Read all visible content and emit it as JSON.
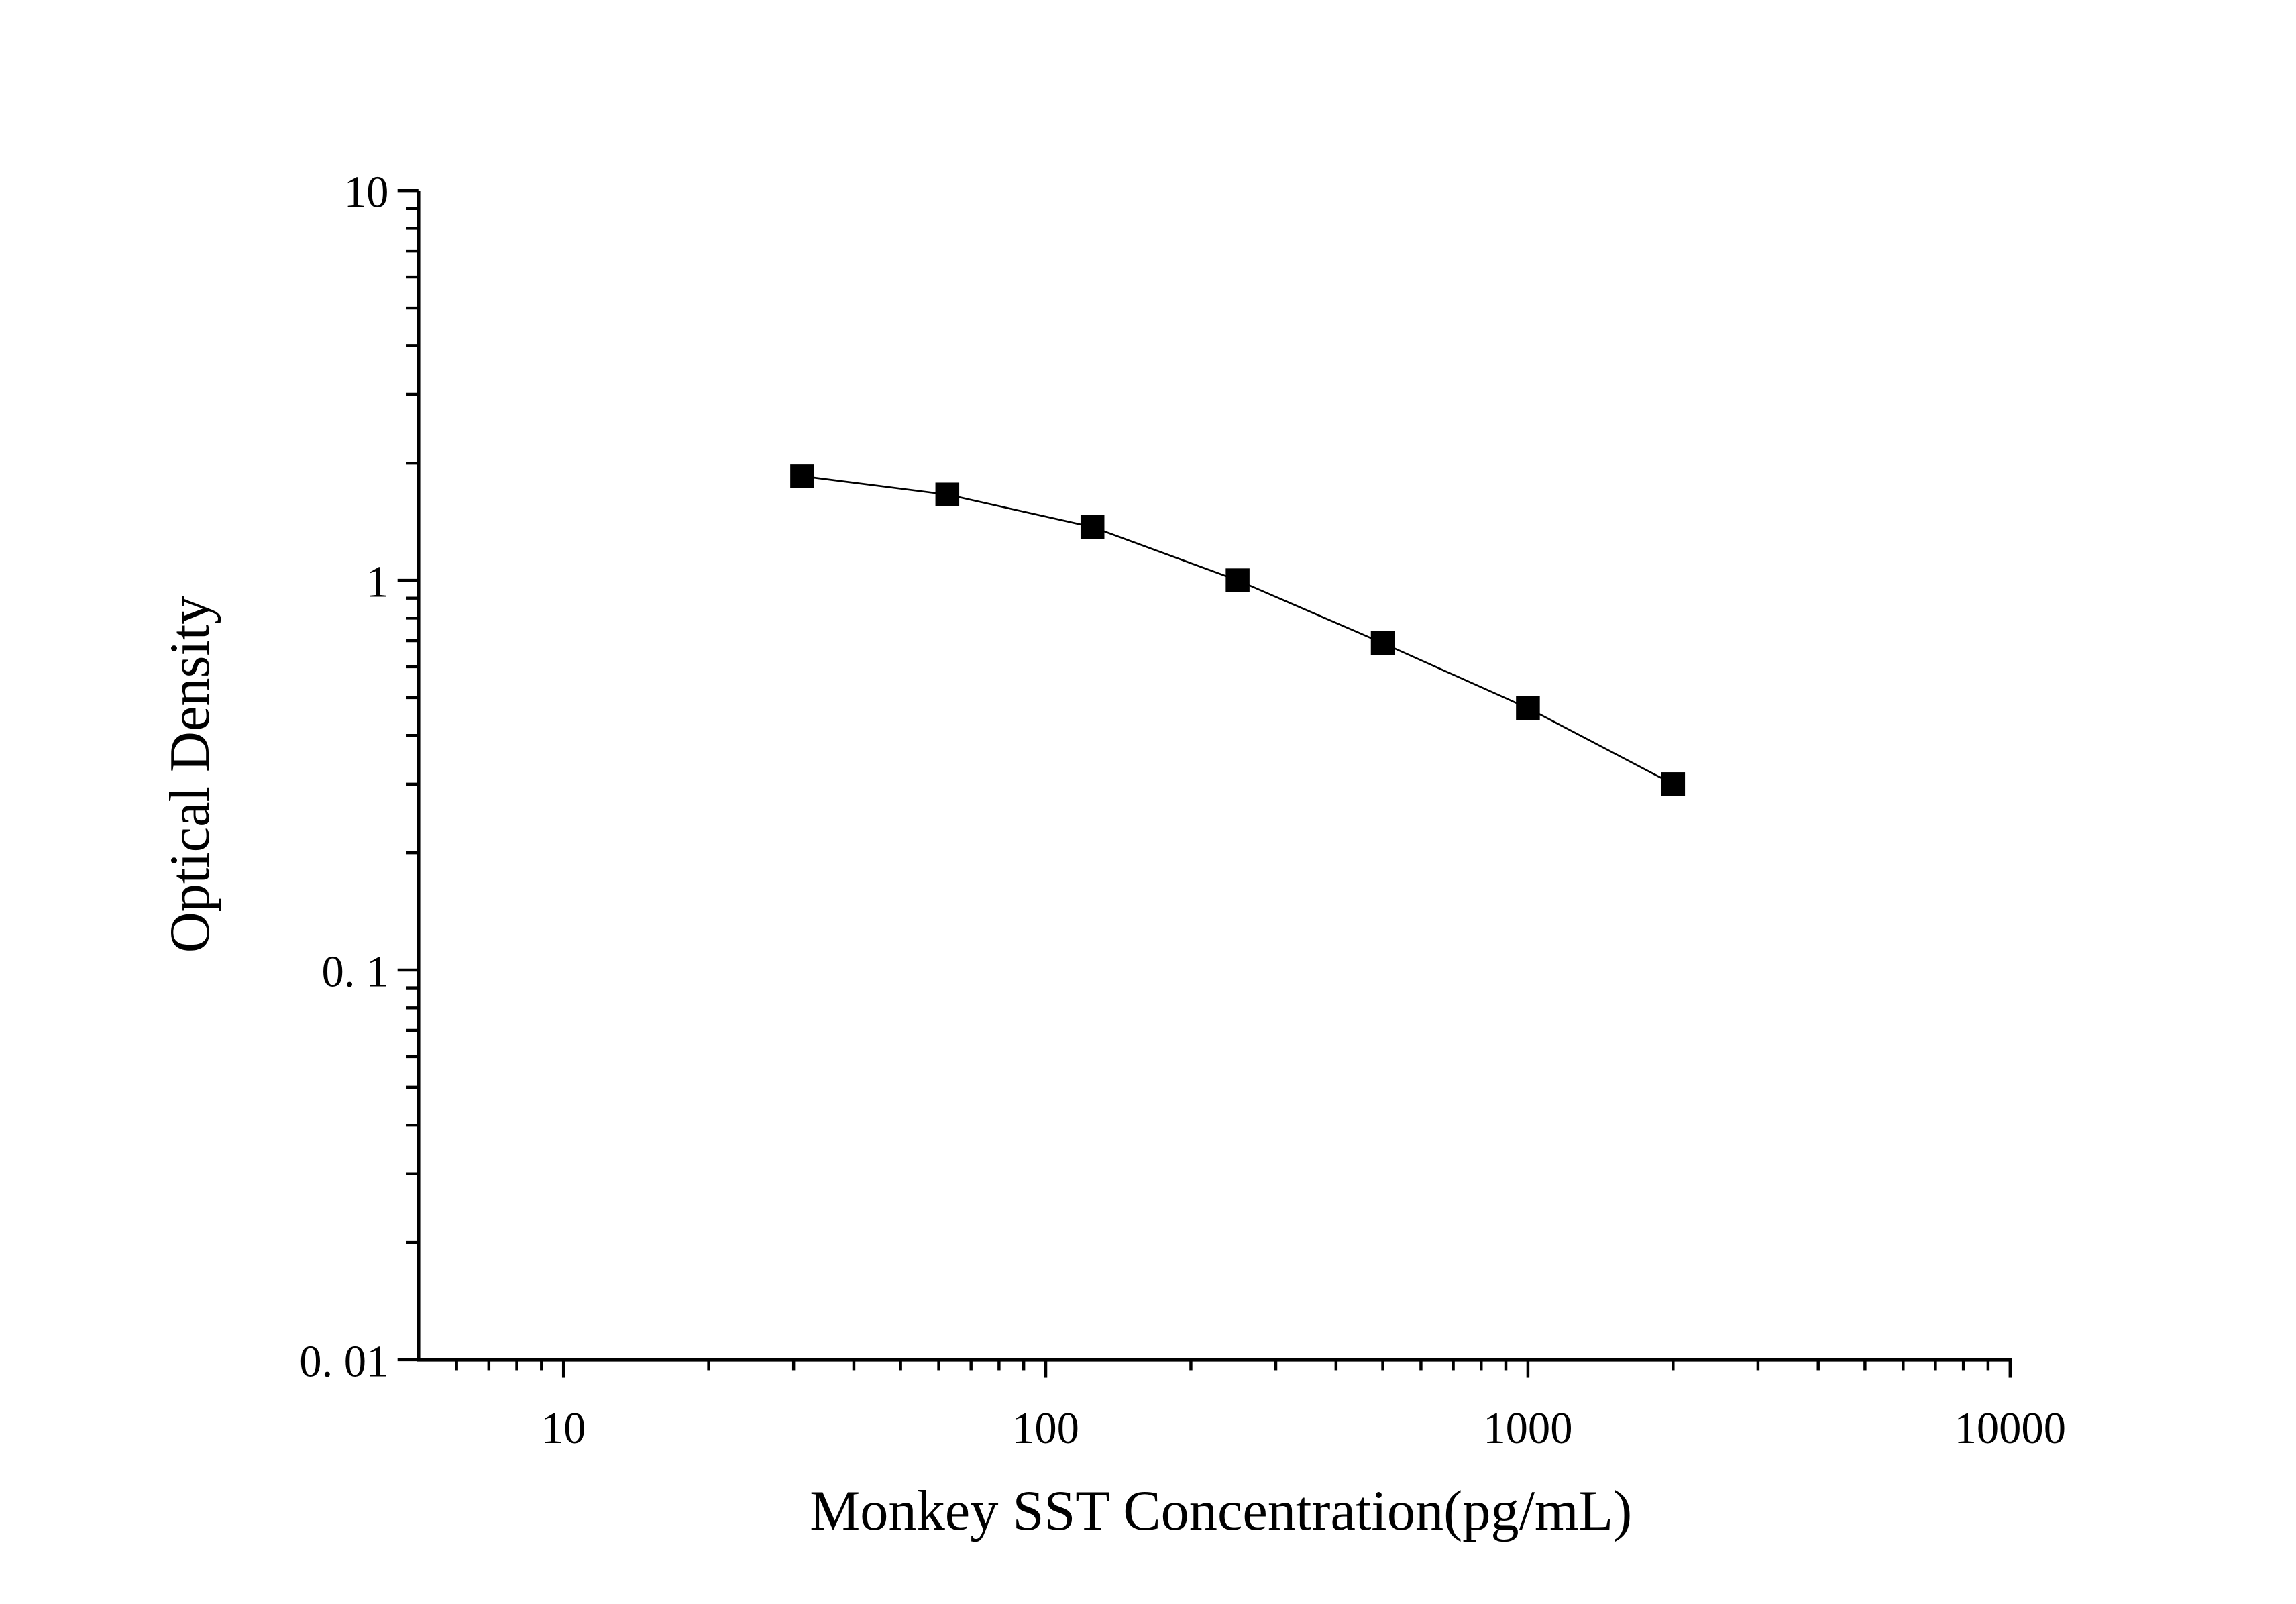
{
  "chart_data": {
    "type": "line",
    "x_label": "Monkey SST Concentration(pg/mL)",
    "y_label": "Optical Density",
    "x": [
      31.25,
      62.5,
      125,
      250,
      500,
      1000,
      2000
    ],
    "series": [
      {
        "color": "#000000",
        "values": [
          1.85,
          1.66,
          1.37,
          1.0,
          0.69,
          0.47,
          0.3
        ]
      }
    ],
    "xlim": [
      5,
      10000
    ],
    "ylim": [
      0.01,
      10
    ],
    "xticks": [
      10,
      100,
      1000,
      10000
    ],
    "yticks": [
      {
        "value": 0.01,
        "label": "0. 01"
      },
      {
        "value": 0.1,
        "label": "0. 1"
      },
      1,
      10
    ],
    "xminorticks": [
      6,
      7,
      8,
      9,
      20,
      30,
      40,
      50,
      60,
      70,
      80,
      90,
      200,
      300,
      400,
      500,
      600,
      700,
      800,
      900,
      2000,
      3000,
      4000,
      5000,
      6000,
      7000,
      8000,
      9000
    ],
    "yminorticks": [
      0.02,
      0.03,
      0.04,
      0.05,
      0.06,
      0.07,
      0.08,
      0.09,
      0.2,
      0.3,
      0.4,
      0.5,
      0.6,
      0.7,
      0.8,
      0.9,
      2,
      3,
      4,
      5,
      6,
      7,
      8,
      9
    ],
    "xscale": "log",
    "yscale": "log",
    "grid": false,
    "marker": "square"
  }
}
